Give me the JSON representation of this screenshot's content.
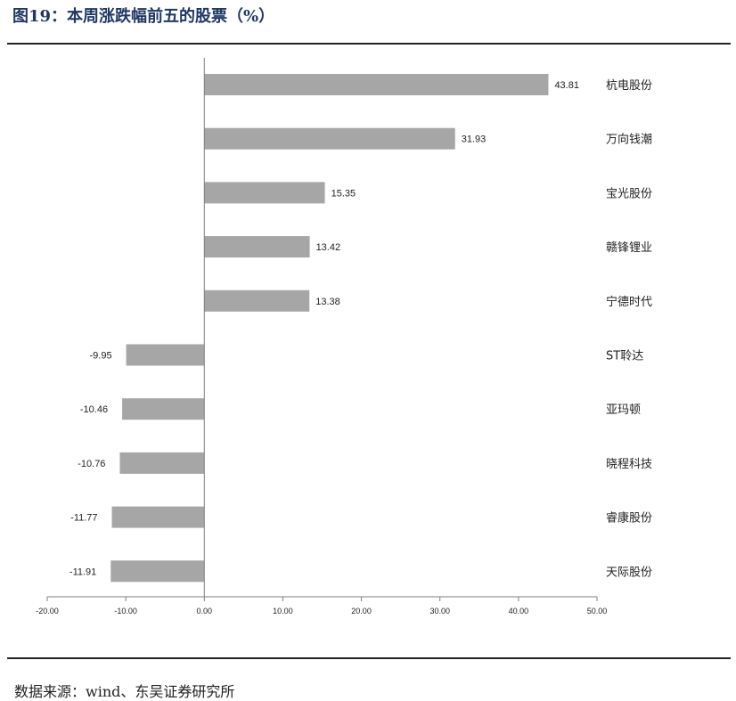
{
  "header": {
    "title": "图19：本周涨跌幅前五的股票（%）"
  },
  "footer": {
    "source": "数据来源：wind、东吴证券研究所"
  },
  "colors": {
    "bar": "#a6a6a6",
    "axis": "#7f7f7f",
    "text": "#222222",
    "title": "#1f3864"
  },
  "chart_data": {
    "type": "bar",
    "orientation": "horizontal",
    "title": "",
    "xlabel": "",
    "ylabel": "",
    "xlim": [
      -20,
      50
    ],
    "x_ticks": [
      "-20.00",
      "-10.00",
      "0.00",
      "10.00",
      "20.00",
      "30.00",
      "40.00",
      "50.00"
    ],
    "grid": false,
    "legend": "none",
    "categories": [
      "杭电股份",
      "万向钱潮",
      "宝光股份",
      "赣锋锂业",
      "宁德时代",
      "ST聆达",
      "亚玛顿",
      "晓程科技",
      "睿康股份",
      "天际股份"
    ],
    "values": [
      43.81,
      31.93,
      15.35,
      13.42,
      13.38,
      -9.95,
      -10.46,
      -10.76,
      -11.77,
      -11.91
    ],
    "value_labels": [
      "43.81",
      "31.93",
      "15.35",
      "13.42",
      "13.38",
      "-9.95",
      "-10.46",
      "-10.76",
      "-11.77",
      "-11.91"
    ]
  }
}
